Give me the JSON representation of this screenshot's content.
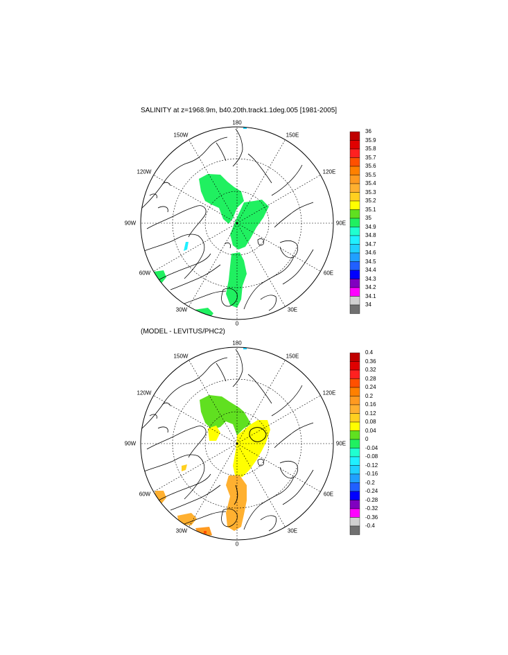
{
  "top_panel": {
    "title": "SALINITY at z=1968.9m, b40.20th.track1.1deg.005 [1981-2005]",
    "lon_labels": [
      "180",
      "150E",
      "120E",
      "90E",
      "60E",
      "30E",
      "0",
      "30W",
      "60W",
      "90W",
      "120W",
      "150W"
    ],
    "colorbar": {
      "labels": [
        "36",
        "35.9",
        "35.8",
        "35.7",
        "35.6",
        "35.5",
        "35.4",
        "35.3",
        "35.2",
        "35.1",
        "35",
        "34.9",
        "34.8",
        "34.7",
        "34.6",
        "34.5",
        "34.4",
        "34.3",
        "34.2",
        "34.1",
        "34"
      ],
      "colors": [
        "#c00000",
        "#e00000",
        "#ff2020",
        "#ff5000",
        "#ff8000",
        "#ff9a20",
        "#ffb030",
        "#ffd020",
        "#ffff00",
        "#60e020",
        "#20f060",
        "#20ffd0",
        "#20f0ff",
        "#20d0ff",
        "#20a0ff",
        "#2060ff",
        "#0000ff",
        "#8000c0",
        "#ff00ff",
        "#d0d0d0",
        "#707070"
      ]
    }
  },
  "bottom_panel": {
    "title": "(MODEL - LEVITUS/PHC2)",
    "lon_labels": [
      "180",
      "150E",
      "120E",
      "90E",
      "60E",
      "30E",
      "0",
      "30W",
      "60W",
      "90W",
      "120W",
      "150W"
    ],
    "colorbar": {
      "labels": [
        "0.4",
        "0.36",
        "0.32",
        "0.28",
        "0.24",
        "0.2",
        "0.16",
        "0.12",
        "0.08",
        "0.04",
        "0",
        "-0.04",
        "-0.08",
        "-0.12",
        "-0.16",
        "-0.2",
        "-0.24",
        "-0.28",
        "-0.32",
        "-0.36",
        "-0.4"
      ],
      "colors": [
        "#c00000",
        "#e00000",
        "#ff2020",
        "#ff5000",
        "#ff8000",
        "#ff9a20",
        "#ffb030",
        "#ffd020",
        "#ffff00",
        "#60e020",
        "#20f060",
        "#20ffd0",
        "#20f0ff",
        "#20d0ff",
        "#20a0ff",
        "#2060ff",
        "#0000ff",
        "#8000c0",
        "#ff00ff",
        "#d0d0d0",
        "#707070"
      ]
    }
  }
}
